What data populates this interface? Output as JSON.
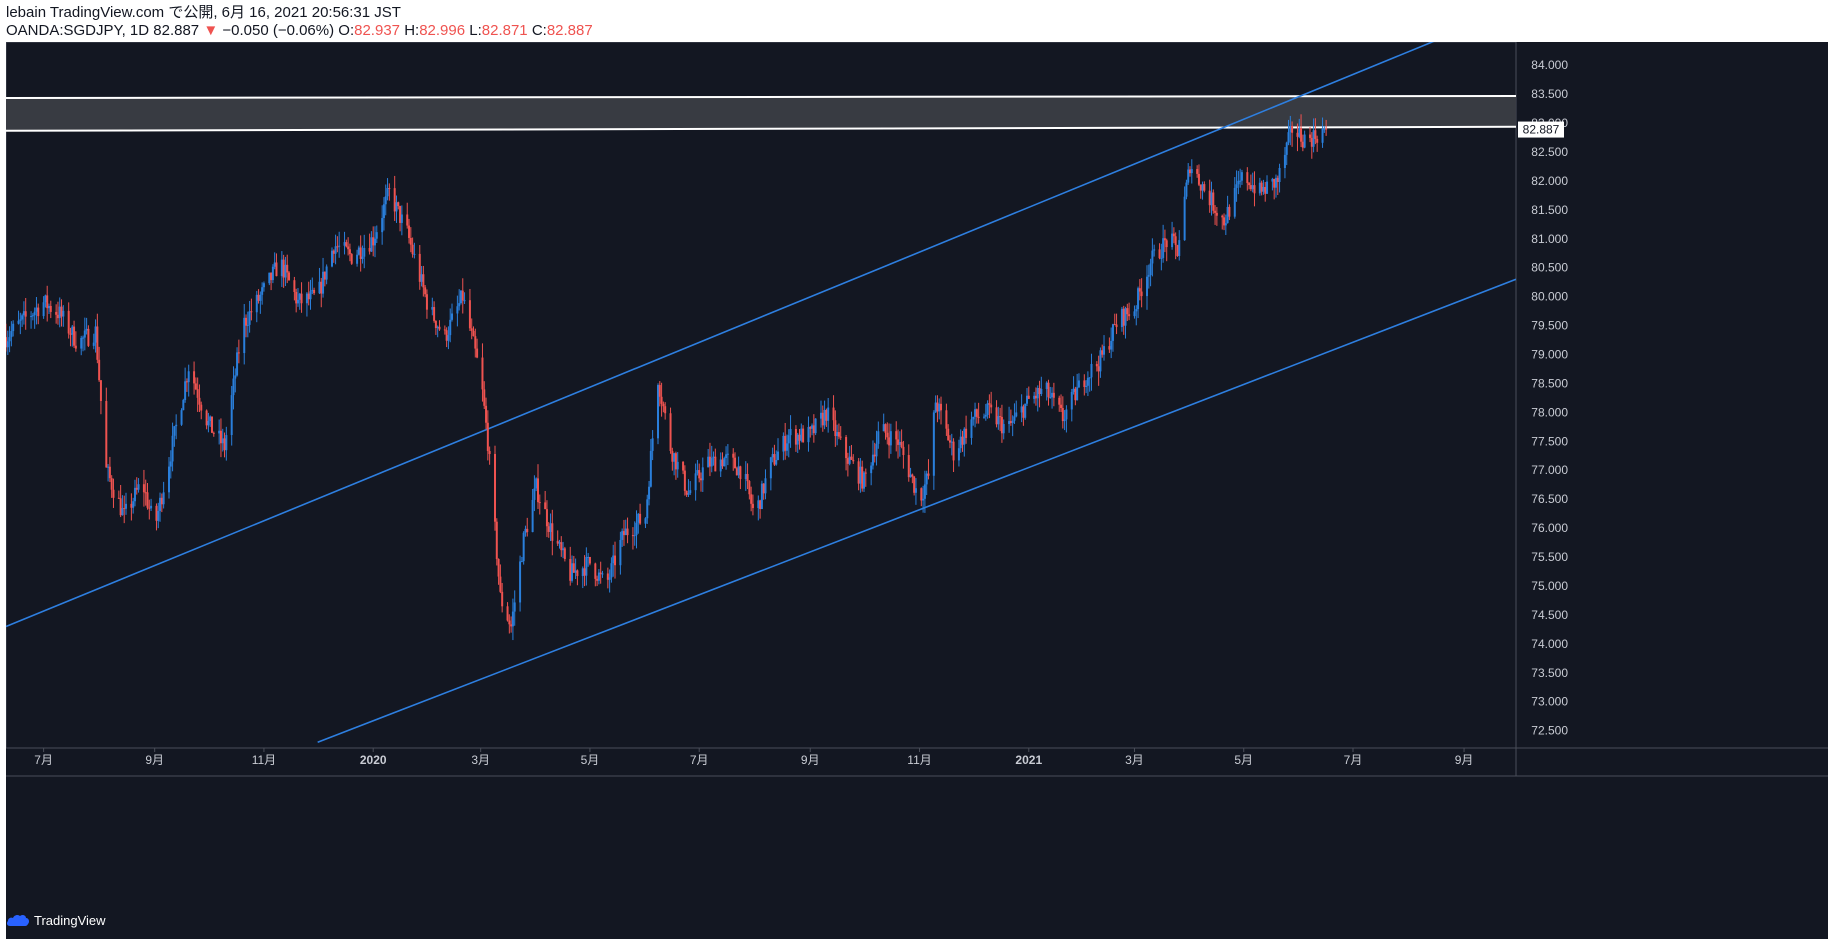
{
  "header": {
    "line1": "lebain TradingView.com で公開, 6月 16, 2021 20:56:31 JST",
    "symbol": "OANDA:SGDJPY, 1D 82.887",
    "change_arrow": "▼",
    "change": "−0.050 (−0.06%)",
    "o_label": "O:",
    "o_value": "82.937",
    "h_label": "H:",
    "h_value": "82.996",
    "l_label": "L:",
    "l_value": "82.871",
    "c_label": "C:",
    "c_value": "82.887"
  },
  "footer": {
    "brand": "TradingView",
    "icon": "tradingview-cloud-icon"
  },
  "colors": {
    "background": "#131722",
    "up": "#2a7fdb",
    "down": "#ef5350",
    "channel": "#2e7fe0",
    "zone": "#3a3d45",
    "zone_line": "#ffffff",
    "axis_text": "#c9ccd4",
    "border": "#4a4e59",
    "price_label_bg": "#ffffff"
  },
  "chart_data": {
    "type": "candlestick",
    "symbol": "OANDA:SGDJPY",
    "interval": "1D",
    "last_price": "82.887",
    "y_ticks": [
      "84.000",
      "83.500",
      "83.000",
      "82.500",
      "82.000",
      "81.500",
      "81.000",
      "80.500",
      "80.000",
      "79.500",
      "79.000",
      "78.500",
      "78.000",
      "77.500",
      "77.000",
      "76.500",
      "76.000",
      "75.500",
      "75.000",
      "74.500",
      "74.000",
      "73.500",
      "73.000",
      "72.500"
    ],
    "x_ticks": [
      "7月",
      "9月",
      "11月",
      "2020",
      "3月",
      "5月",
      "7月",
      "9月",
      "11月",
      "2021",
      "3月",
      "5月",
      "7月",
      "9月"
    ],
    "x_tick_months": [
      "2019-07",
      "2019-09",
      "2019-11",
      "2020-01",
      "2020-03",
      "2020-05",
      "2020-07",
      "2020-09",
      "2020-11",
      "2021-01",
      "2021-03",
      "2021-05",
      "2021-07",
      "2021-09"
    ],
    "ylim": [
      72.2,
      84.4
    ],
    "xlim": [
      "2019-06-10",
      "2021-09-30"
    ],
    "price_path": [
      [
        "2019-06-10",
        79.3
      ],
      [
        "2019-06-20",
        79.6
      ],
      [
        "2019-07-01",
        79.9
      ],
      [
        "2019-07-10",
        79.7
      ],
      [
        "2019-07-20",
        79.2
      ],
      [
        "2019-07-30",
        79.4
      ],
      [
        "2019-08-05",
        77.0
      ],
      [
        "2019-08-15",
        76.2
      ],
      [
        "2019-08-25",
        76.8
      ],
      [
        "2019-09-01",
        76.0
      ],
      [
        "2019-09-10",
        77.3
      ],
      [
        "2019-09-20",
        78.8
      ],
      [
        "2019-10-01",
        77.8
      ],
      [
        "2019-10-10",
        77.4
      ],
      [
        "2019-10-20",
        79.5
      ],
      [
        "2019-11-01",
        80.1
      ],
      [
        "2019-11-10",
        80.6
      ],
      [
        "2019-11-20",
        79.9
      ],
      [
        "2019-12-01",
        80.0
      ],
      [
        "2019-12-10",
        80.9
      ],
      [
        "2019-12-20",
        80.7
      ],
      [
        "2020-01-01",
        81.0
      ],
      [
        "2020-01-10",
        81.8
      ],
      [
        "2020-01-20",
        81.1
      ],
      [
        "2020-02-01",
        79.8
      ],
      [
        "2020-02-10",
        79.3
      ],
      [
        "2020-02-20",
        80.0
      ],
      [
        "2020-03-01",
        78.6
      ],
      [
        "2020-03-05",
        77.5
      ],
      [
        "2020-03-12",
        74.8
      ],
      [
        "2020-03-18",
        74.3
      ],
      [
        "2020-03-25",
        75.8
      ],
      [
        "2020-04-01",
        76.7
      ],
      [
        "2020-04-10",
        75.9
      ],
      [
        "2020-04-20",
        75.2
      ],
      [
        "2020-05-01",
        75.4
      ],
      [
        "2020-05-10",
        75.0
      ],
      [
        "2020-05-20",
        75.9
      ],
      [
        "2020-06-01",
        76.2
      ],
      [
        "2020-06-08",
        78.6
      ],
      [
        "2020-06-15",
        77.4
      ],
      [
        "2020-06-25",
        76.6
      ],
      [
        "2020-07-05",
        77.1
      ],
      [
        "2020-07-15",
        77.2
      ],
      [
        "2020-07-25",
        77.0
      ],
      [
        "2020-08-01",
        76.2
      ],
      [
        "2020-08-10",
        77.1
      ],
      [
        "2020-08-20",
        77.6
      ],
      [
        "2020-09-01",
        77.6
      ],
      [
        "2020-09-10",
        78.0
      ],
      [
        "2020-09-20",
        77.3
      ],
      [
        "2020-10-01",
        76.8
      ],
      [
        "2020-10-10",
        77.7
      ],
      [
        "2020-10-20",
        77.5
      ],
      [
        "2020-11-01",
        76.5
      ],
      [
        "2020-11-06",
        76.9
      ],
      [
        "2020-11-10",
        78.2
      ],
      [
        "2020-11-20",
        77.3
      ],
      [
        "2020-12-01",
        77.9
      ],
      [
        "2020-12-10",
        78.0
      ],
      [
        "2020-12-20",
        77.7
      ],
      [
        "2021-01-01",
        78.2
      ],
      [
        "2021-01-10",
        78.4
      ],
      [
        "2021-01-20",
        77.9
      ],
      [
        "2021-02-01",
        78.6
      ],
      [
        "2021-02-10",
        78.9
      ],
      [
        "2021-02-20",
        79.6
      ],
      [
        "2021-03-01",
        79.8
      ],
      [
        "2021-03-10",
        80.6
      ],
      [
        "2021-03-20",
        81.0
      ],
      [
        "2021-03-25",
        80.8
      ],
      [
        "2021-04-01",
        82.3
      ],
      [
        "2021-04-10",
        81.8
      ],
      [
        "2021-04-20",
        81.3
      ],
      [
        "2021-05-01",
        82.1
      ],
      [
        "2021-05-10",
        81.8
      ],
      [
        "2021-05-20",
        82.0
      ],
      [
        "2021-05-28",
        82.9
      ],
      [
        "2021-06-05",
        82.7
      ],
      [
        "2021-06-16",
        82.887
      ]
    ],
    "channel_upper": [
      [
        "2019-06-10",
        74.3
      ],
      [
        "2021-08-30",
        84.6
      ]
    ],
    "channel_lower": [
      [
        "2019-12-01",
        72.3
      ],
      [
        "2021-09-30",
        80.3
      ]
    ],
    "zone": {
      "top": 83.45,
      "bottom": 82.9
    }
  }
}
